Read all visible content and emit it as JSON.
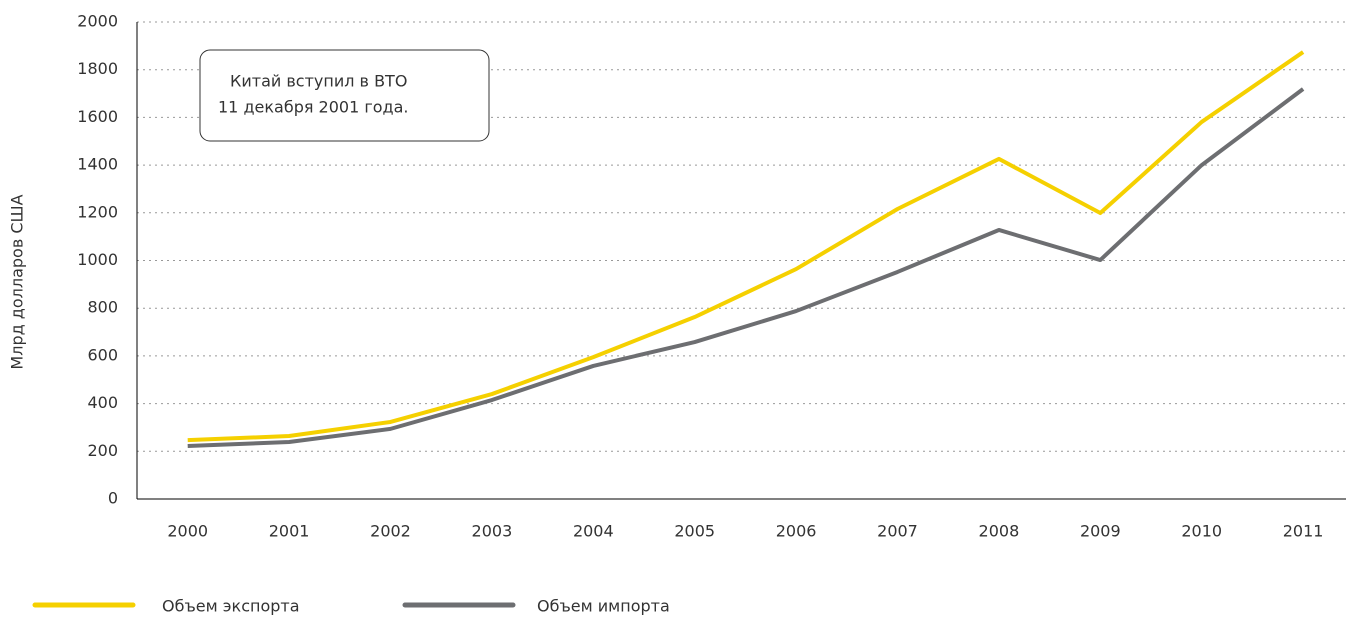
{
  "chart_data": {
    "type": "line",
    "y_label": "Млрд долларов США",
    "annotation": [
      "Китай вступил в ВТО",
      "11 декабря 2001 года."
    ],
    "categories": [
      "2000",
      "2001",
      "2002",
      "2003",
      "2004",
      "2005",
      "2006",
      "2007",
      "2008",
      "2009",
      "2010",
      "2011"
    ],
    "series": [
      {
        "name": "Объем экспорта",
        "color": "#f5d000",
        "values": [
          247,
          264,
          323,
          440,
          595,
          763,
          964,
          1216,
          1426,
          1199,
          1581,
          1874
        ]
      },
      {
        "name": "Объем импорта",
        "color": "#6d6e71",
        "values": [
          222,
          239,
          294,
          415,
          558,
          658,
          788,
          952,
          1128,
          1002,
          1400,
          1719
        ]
      }
    ],
    "ylim": [
      0,
      2000
    ],
    "yticks": [
      0,
      200,
      400,
      600,
      800,
      1000,
      1200,
      1400,
      1600,
      1800,
      2000
    ],
    "grid": true,
    "legend": "bottom"
  }
}
